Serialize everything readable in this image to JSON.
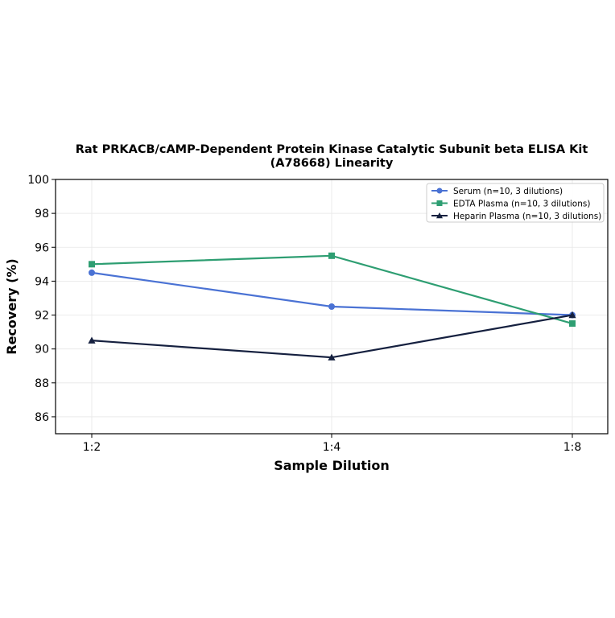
{
  "chart_data": {
    "type": "line",
    "title_line1": "Rat PRKACB/cAMP-Dependent Protein Kinase Catalytic Subunit beta ELISA Kit",
    "title_line2": "(A78668) Linearity",
    "xlabel": "Sample Dilution",
    "ylabel": "Recovery (%)",
    "categories": [
      "1:2",
      "1:4",
      "1:8"
    ],
    "ylim": [
      85,
      100
    ],
    "yticks": [
      "86",
      "88",
      "90",
      "92",
      "94",
      "96",
      "98",
      "100"
    ],
    "grid": true,
    "legend_position": "top-right",
    "series": [
      {
        "name": "Serum (n=10, 3 dilutions)",
        "values": [
          94.5,
          92.5,
          92.0
        ],
        "color": "#4a72d4",
        "marker": "circle"
      },
      {
        "name": "EDTA Plasma (n=10, 3 dilutions)",
        "values": [
          95.0,
          95.5,
          91.5
        ],
        "color": "#2e9e72",
        "marker": "square"
      },
      {
        "name": "Heparin Plasma (n=10, 3 dilutions)",
        "values": [
          90.5,
          89.5,
          92.0
        ],
        "color": "#15203f",
        "marker": "triangle"
      }
    ]
  }
}
